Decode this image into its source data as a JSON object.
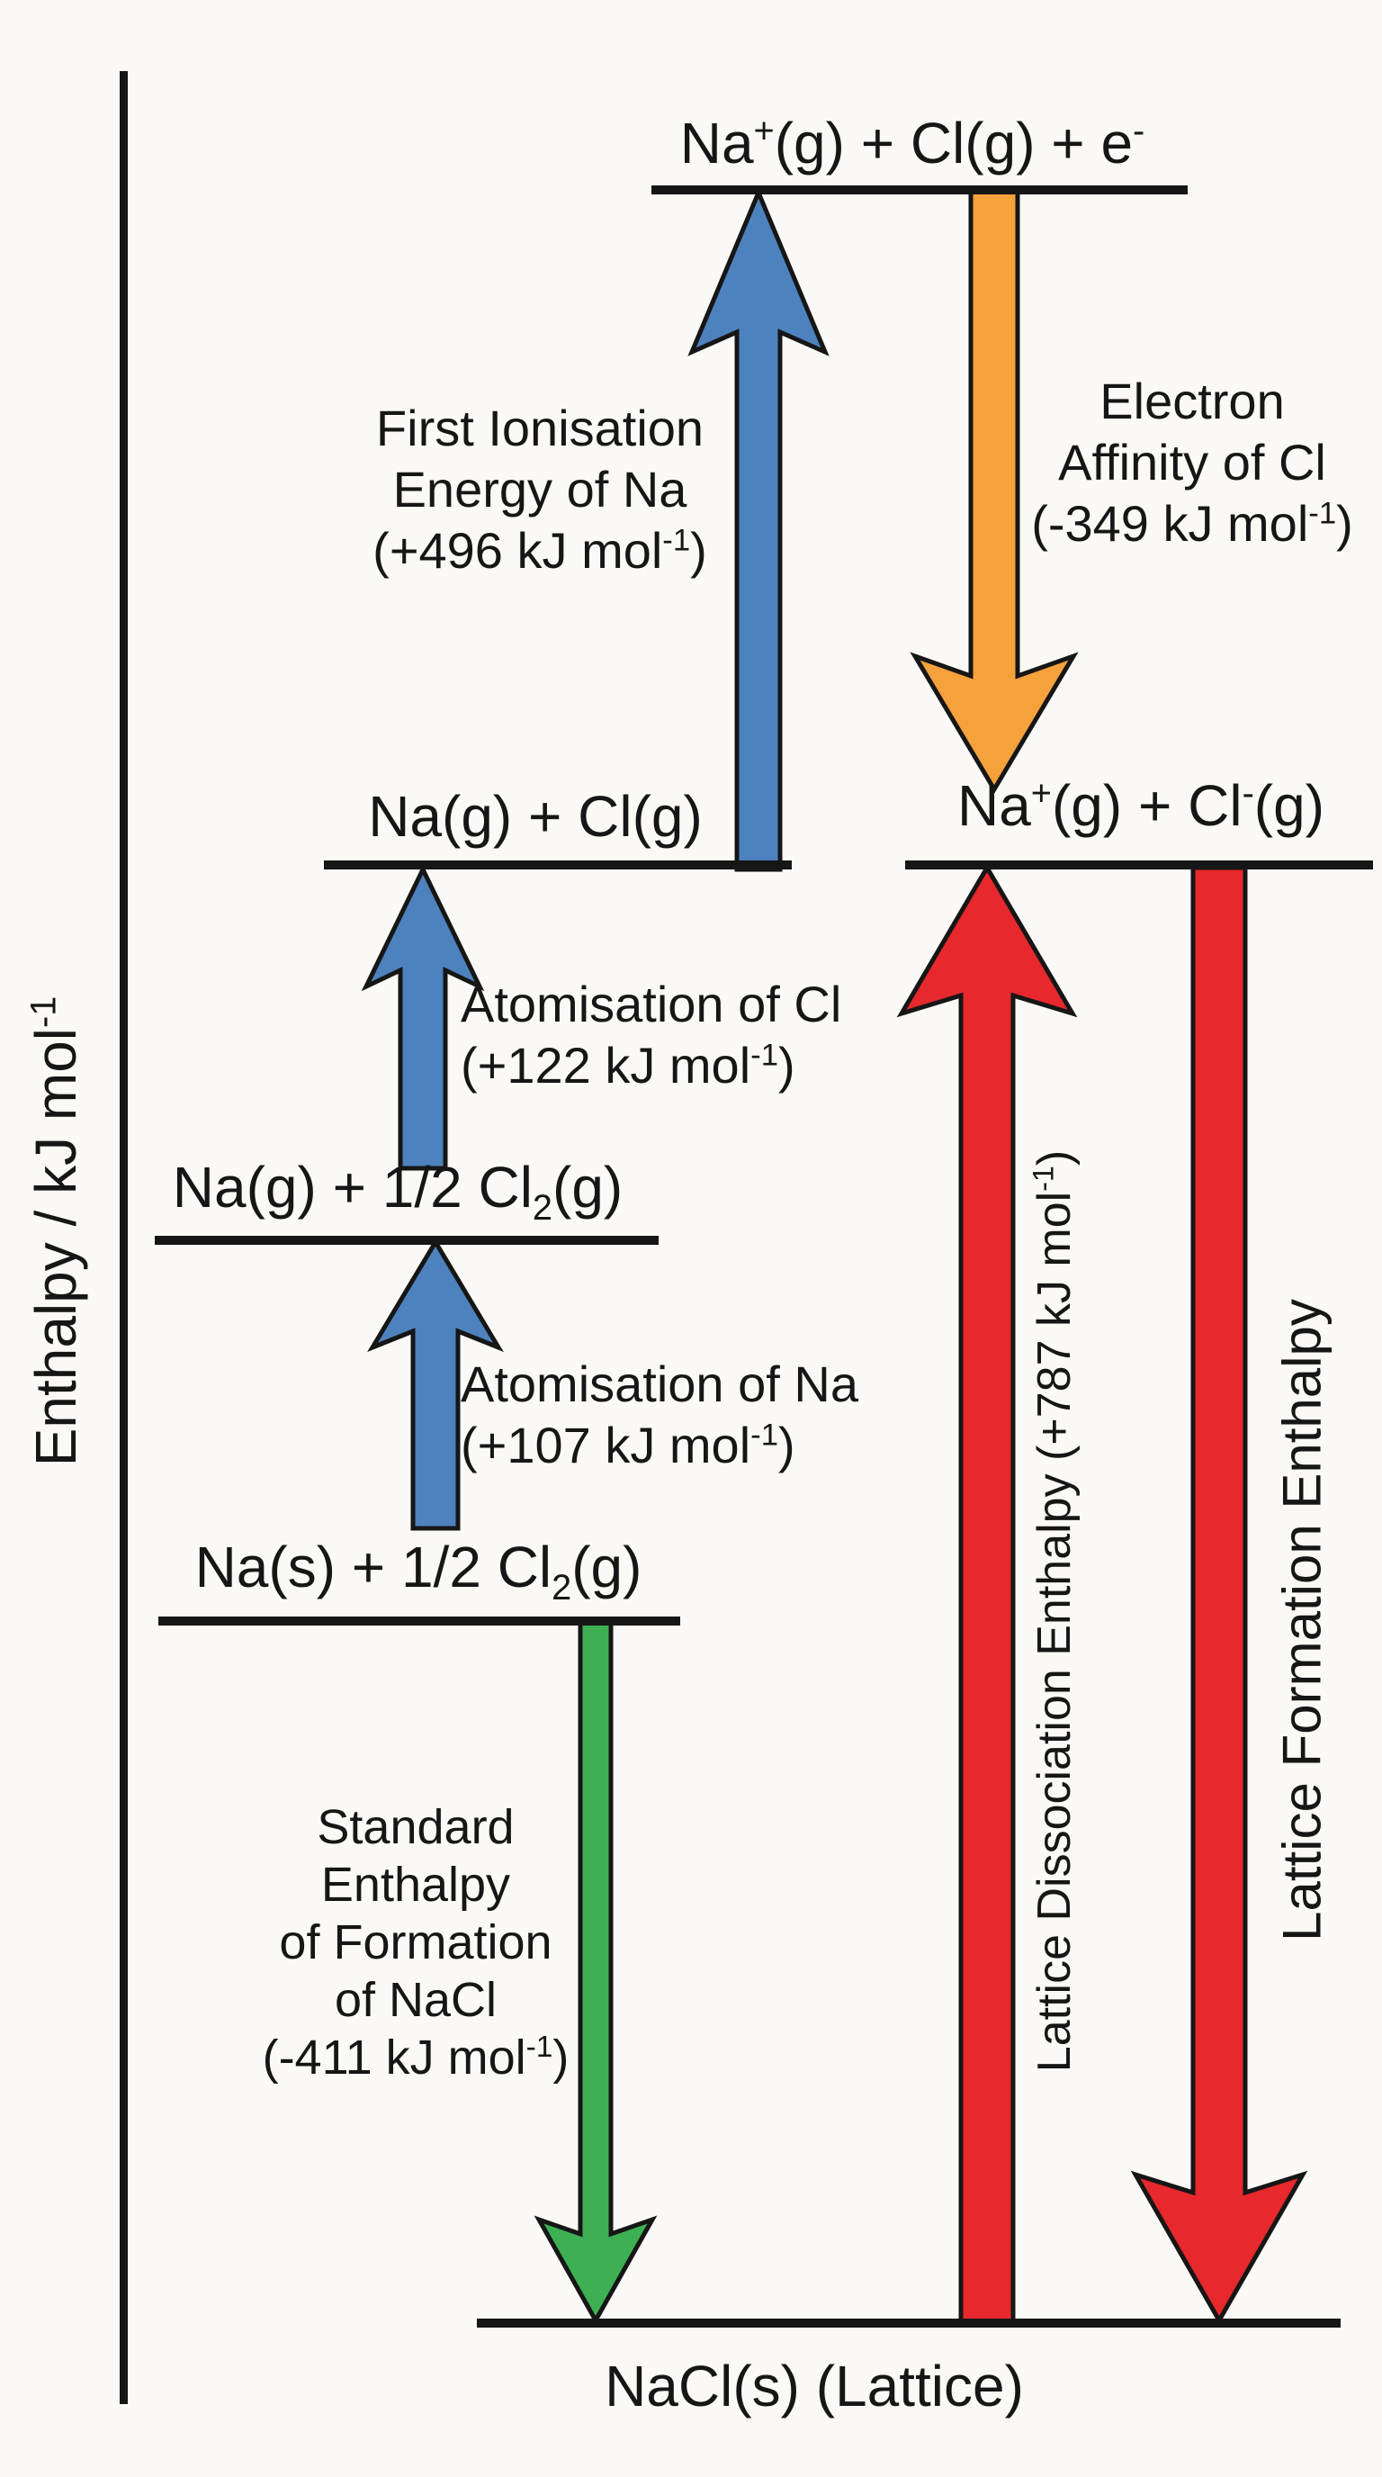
{
  "background_color": "#faf9f6",
  "colors": {
    "ink": "#161616",
    "blue": "#4d82be",
    "orange": "#f5a13c",
    "green": "#3eb054",
    "red": "#e7282c"
  },
  "axis": {
    "label_html": "Enthalpy / kJ mol<sup>-1</sup>",
    "label_text": "Enthalpy / kJ mol-1"
  },
  "levels": [
    {
      "id": "gaseous-ion-plus-electron",
      "label_html": "Na<sup>+</sup>(g) + Cl(g) + e<sup>-</sup>"
    },
    {
      "id": "gaseous-atoms",
      "label_html": "Na(g) + Cl(g)"
    },
    {
      "id": "gaseous-ions",
      "label_html": "Na<sup>+</sup>(g) + Cl<sup>-</sup>(g)"
    },
    {
      "id": "na-gas-half-cl2",
      "label_html": "Na(g) + 1/2 Cl<sub>2</sub>(g)"
    },
    {
      "id": "elements-standard-state",
      "label_html": "Na(s) + 1/2 Cl<sub>2</sub>(g)"
    },
    {
      "id": "lattice",
      "label_html": "NaCl(s) (Lattice)"
    }
  ],
  "steps": [
    {
      "name": "First Ionisation Energy of Na",
      "value_kj_per_mol": 496,
      "direction": "up",
      "color": "blue",
      "label_html": "First Ionisation<br>Energy of Na<br>(+496 kJ mol<sup>-1</sup>)"
    },
    {
      "name": "Electron Affinity of Cl",
      "value_kj_per_mol": -349,
      "direction": "down",
      "color": "orange",
      "label_html": "Electron<br>Affinity of Cl<br>(-349 kJ mol<sup>-1</sup>)"
    },
    {
      "name": "Atomisation of Cl",
      "value_kj_per_mol": 122,
      "direction": "up",
      "color": "blue",
      "label_html": "Atomisation of Cl<br>(+122 kJ mol<sup>-1</sup>)"
    },
    {
      "name": "Atomisation of Na",
      "value_kj_per_mol": 107,
      "direction": "up",
      "color": "blue",
      "label_html": "Atomisation of Na<br>(+107 kJ mol<sup>-1</sup>)"
    },
    {
      "name": "Standard Enthalpy of Formation of NaCl",
      "value_kj_per_mol": -411,
      "direction": "down",
      "color": "green",
      "label_html": "Standard<br>Enthalpy<br>of Formation<br>of NaCl<br>(-411 kJ mol<sup>-1</sup>)"
    },
    {
      "name": "Lattice Dissociation Enthalpy",
      "value_kj_per_mol": 787,
      "direction": "up",
      "color": "red",
      "label_html": "Lattice Dissociation Enthalpy (+787 kJ mol<sup>-1</sup>)"
    },
    {
      "name": "Lattice Formation Enthalpy",
      "direction": "down",
      "color": "red",
      "label_html": "Lattice Formation Enthalpy"
    }
  ]
}
